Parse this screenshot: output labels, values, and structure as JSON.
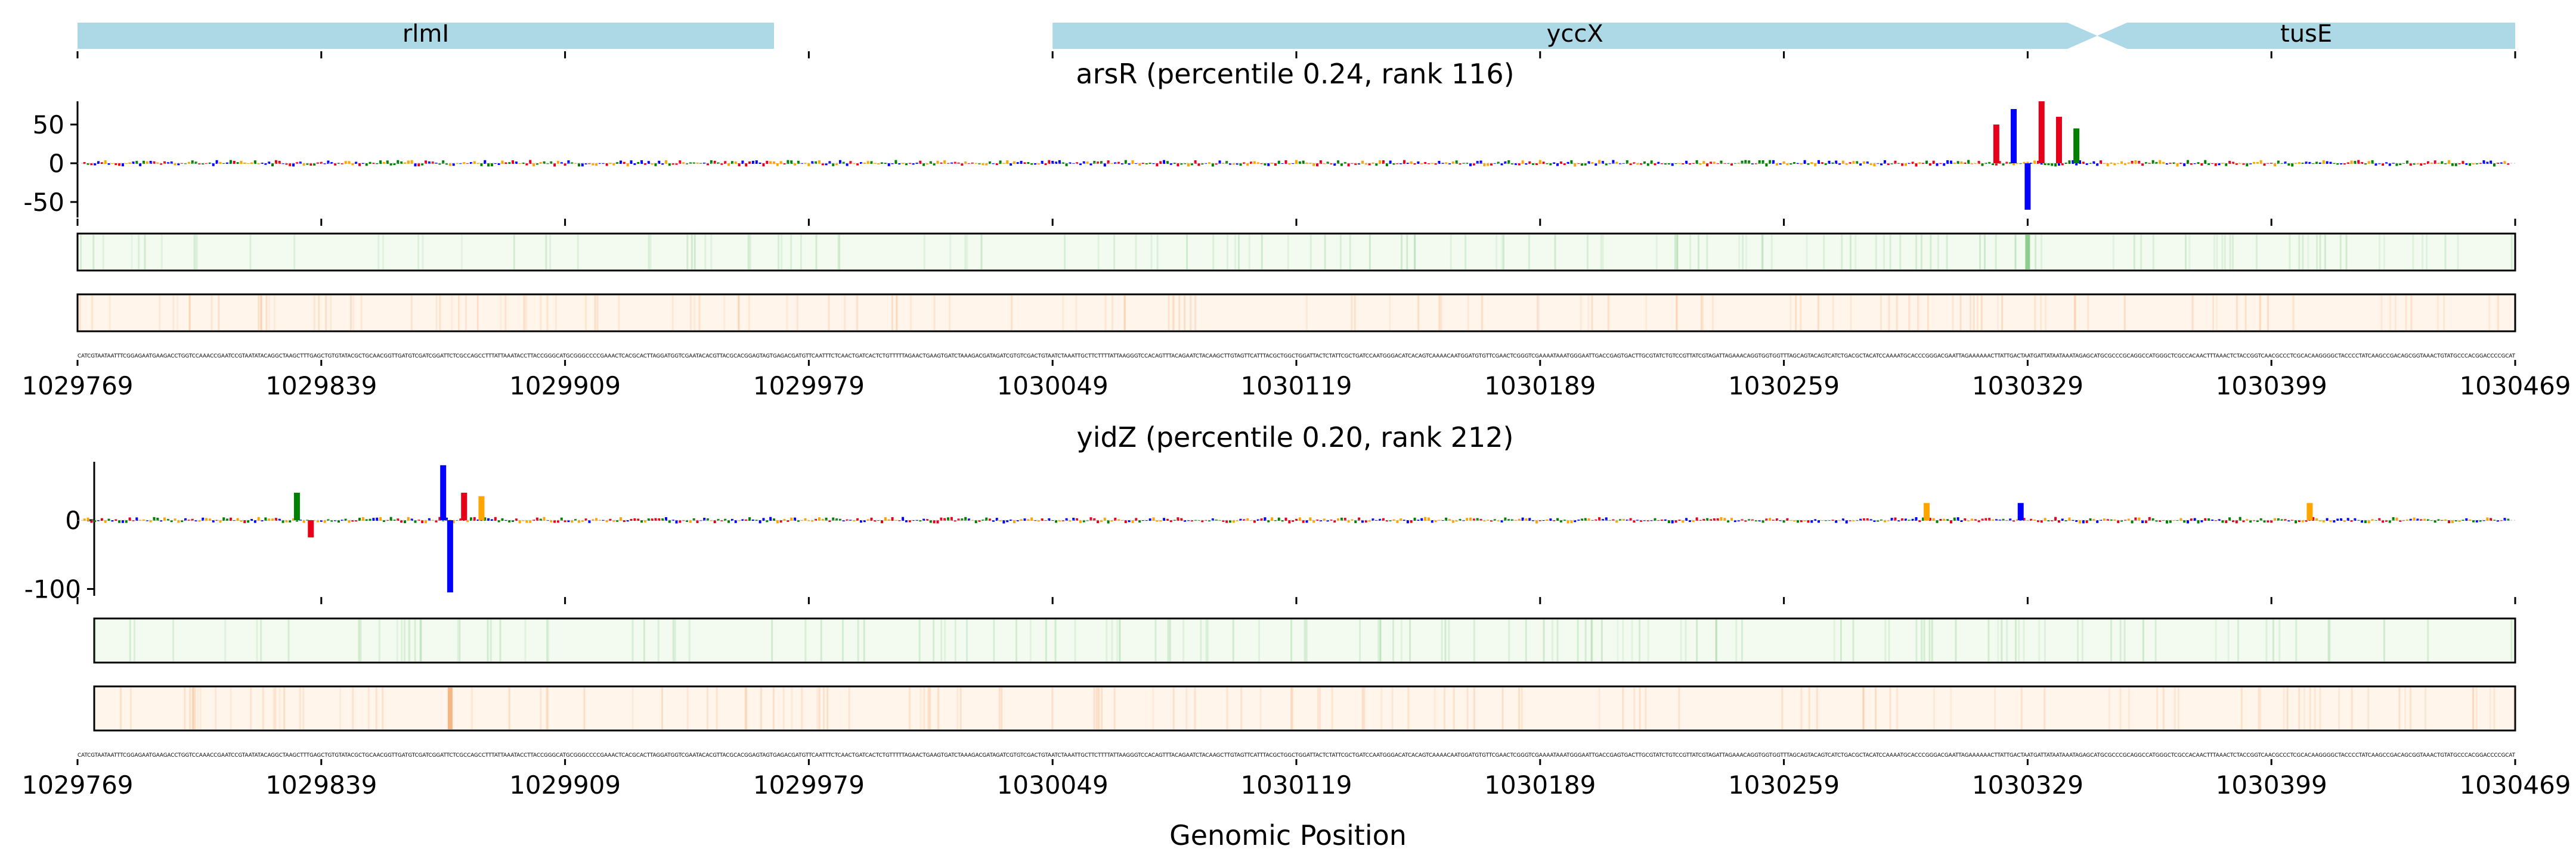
{
  "chart_data": [
    {
      "type": "gene-track",
      "genes": [
        {
          "name": "rlmI",
          "start": 1029769,
          "end": 1029969,
          "strand": "-"
        },
        {
          "name": "yccX",
          "start": 1030049,
          "end": 1030349,
          "strand": "+"
        },
        {
          "name": "tusE",
          "start": 1030349,
          "end": 1030469,
          "strand": "-"
        }
      ],
      "xlim": [
        1029769,
        1030469
      ]
    },
    {
      "type": "sequence-logo",
      "title": "arsR (percentile 0.24, rank 116)",
      "xlabel": "",
      "ylabel": "",
      "ylim": [
        -70,
        80
      ],
      "yticks": [
        50,
        0,
        -50
      ],
      "xticks": [
        1029769,
        1029839,
        1029909,
        1029979,
        1030049,
        1030119,
        1030189,
        1030259,
        1030329,
        1030399,
        1030469
      ],
      "xlim": [
        1029769,
        1030469
      ],
      "peaks": [
        {
          "x": 1030320,
          "value": 50,
          "color": "#e6001a"
        },
        {
          "x": 1030325,
          "value": 70,
          "color": "#0000ff"
        },
        {
          "x": 1030329,
          "value": -60,
          "color": "#0000ff"
        },
        {
          "x": 1030333,
          "value": 80,
          "color": "#e6001a"
        },
        {
          "x": 1030338,
          "value": 60,
          "color": "#e6001a"
        },
        {
          "x": 1030343,
          "value": 45,
          "color": "#008000"
        }
      ],
      "attribution_strip": {
        "color": "#3aa83a",
        "highlight_x": 1030329
      }
    },
    {
      "type": "sequence-logo",
      "title": "yidZ (percentile 0.20, rank 212)",
      "xlabel": "Genomic Position",
      "ylabel": "",
      "ylim": [
        -110,
        85
      ],
      "yticks": [
        0,
        -100
      ],
      "xticks": [
        1029769,
        1029839,
        1029909,
        1029979,
        1030049,
        1030119,
        1030189,
        1030259,
        1030329,
        1030399,
        1030469
      ],
      "xlim": [
        1029769,
        1030469
      ],
      "peaks": [
        {
          "x": 1029832,
          "value": 40,
          "color": "#008000"
        },
        {
          "x": 1029836,
          "value": -25,
          "color": "#e6001a"
        },
        {
          "x": 1029874,
          "value": 80,
          "color": "#0000ff"
        },
        {
          "x": 1029876,
          "value": -105,
          "color": "#0000ff"
        },
        {
          "x": 1029880,
          "value": 40,
          "color": "#e6001a"
        },
        {
          "x": 1029885,
          "value": 35,
          "color": "#ffa500"
        },
        {
          "x": 1030327,
          "value": 25,
          "color": "#0000ff"
        },
        {
          "x": 1030300,
          "value": 25,
          "color": "#ffa500"
        },
        {
          "x": 1030410,
          "value": 25,
          "color": "#ffa500"
        }
      ],
      "attribution_strip": {
        "color": "#f08030",
        "highlight_x": 1029876
      }
    }
  ],
  "colors": {
    "gene_fill": "#add8e6",
    "A": "#008000",
    "C": "#0000ff",
    "G": "#ffa500",
    "T": "#e6001a",
    "strip_green_bg": "#f3fbf1",
    "strip_orange_bg": "#fff5eb"
  }
}
